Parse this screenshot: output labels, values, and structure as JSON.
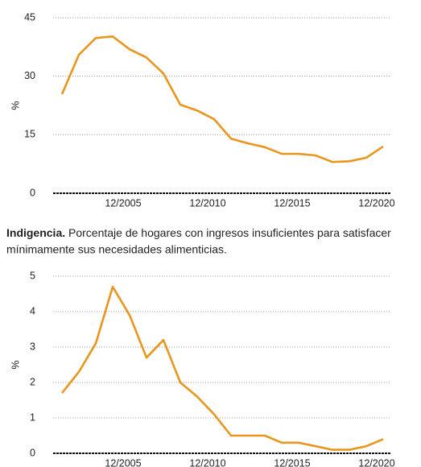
{
  "chart_data": [
    {
      "type": "line",
      "y_label": "%",
      "categories": [
        null,
        null,
        null,
        null,
        "12/2005",
        null,
        null,
        null,
        null,
        "12/2010",
        null,
        null,
        null,
        null,
        "12/2015",
        null,
        null,
        null,
        null,
        "12/2020"
      ],
      "series": [
        {
          "color": "#e8961e",
          "values": [
            25.4,
            35.5,
            39.8,
            40.2,
            36.9,
            34.8,
            30.7,
            22.7,
            21.2,
            19.0,
            14.0,
            12.8,
            11.8,
            10.1,
            10.1,
            9.7,
            8.0,
            8.2,
            9.1,
            12.0
          ]
        }
      ],
      "ylim": [
        0,
        45
      ],
      "yticks": [
        0,
        15,
        30,
        45
      ],
      "grid": true
    },
    {
      "type": "line",
      "title": "Indigencia.",
      "subtitle": "Porcentaje de hogares con ingresos insuficientes para satisfacer mínimamente sus necesidades alimenticias.",
      "y_label": "%",
      "categories": [
        null,
        null,
        null,
        null,
        "12/2005",
        null,
        null,
        null,
        null,
        "12/2010",
        null,
        null,
        null,
        null,
        "12/2015",
        null,
        null,
        null,
        null,
        "12/2020"
      ],
      "series": [
        {
          "color": "#e8961e",
          "values": [
            1.7,
            2.3,
            3.1,
            4.7,
            3.9,
            2.7,
            3.2,
            2.0,
            1.6,
            1.1,
            0.5,
            0.5,
            0.5,
            0.3,
            0.3,
            0.2,
            0.1,
            0.1,
            0.2,
            0.4
          ]
        }
      ],
      "ylim": [
        0,
        5
      ],
      "yticks": [
        0,
        1,
        2,
        3,
        4,
        5
      ],
      "grid": true
    }
  ]
}
